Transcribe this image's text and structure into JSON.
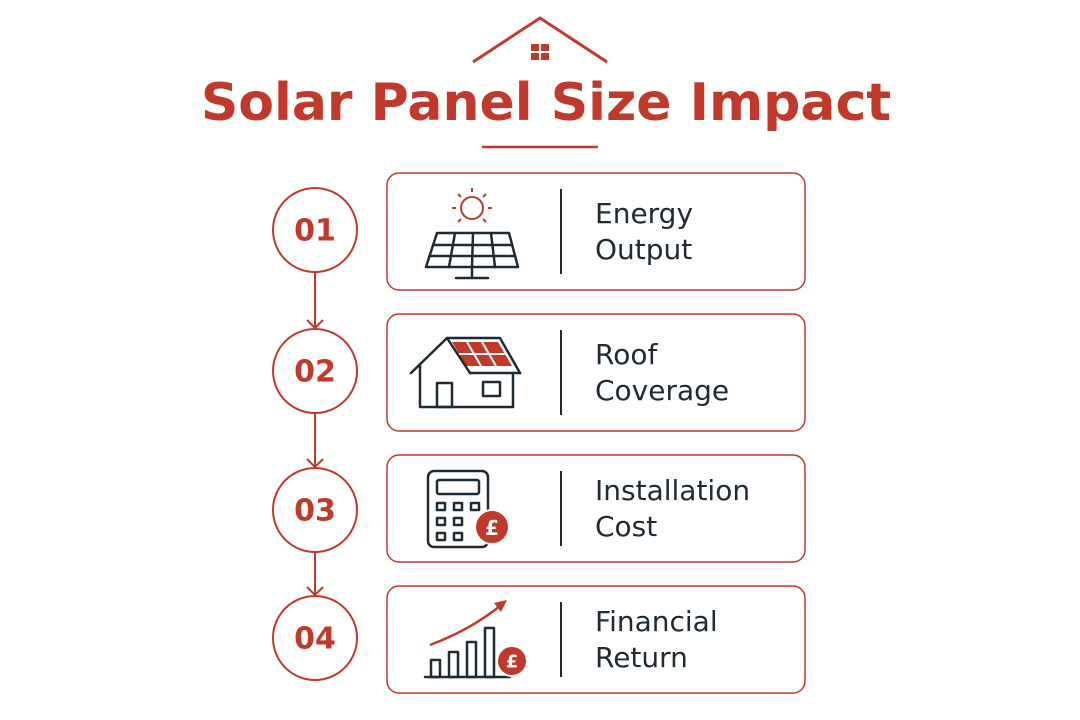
{
  "title": "Solar Panel Size Impact",
  "currency_symbol": "£",
  "steps": [
    {
      "number": "01",
      "label": [
        "Energy",
        "Output"
      ]
    },
    {
      "number": "02",
      "label": [
        "Roof",
        "Coverage"
      ]
    },
    {
      "number": "03",
      "label": [
        "Installation",
        "Cost"
      ]
    },
    {
      "number": "04",
      "label": [
        "Financial",
        "Return"
      ]
    }
  ]
}
